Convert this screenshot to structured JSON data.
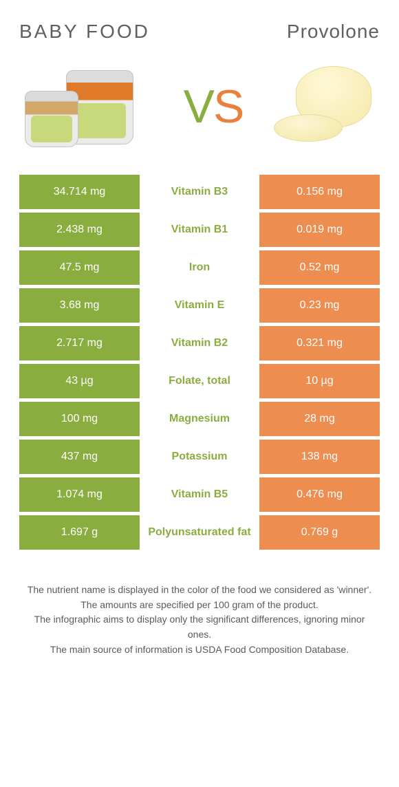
{
  "header": {
    "left_title": "Baby food",
    "right_title": "Provolone"
  },
  "vs": {
    "v": "V",
    "s": "S"
  },
  "colors": {
    "left_bg": "#8aad3f",
    "right_bg": "#ed8d4f",
    "left_text": "#8aad3f",
    "right_text": "#ed8d4f",
    "cell_text": "#ffffff",
    "body_text": "#595959"
  },
  "table": {
    "rows": [
      {
        "left": "34.714 mg",
        "label": "Vitamin B3",
        "right": "0.156 mg",
        "winner": "left"
      },
      {
        "left": "2.438 mg",
        "label": "Vitamin B1",
        "right": "0.019 mg",
        "winner": "left"
      },
      {
        "left": "47.5 mg",
        "label": "Iron",
        "right": "0.52 mg",
        "winner": "left"
      },
      {
        "left": "3.68 mg",
        "label": "Vitamin E",
        "right": "0.23 mg",
        "winner": "left"
      },
      {
        "left": "2.717 mg",
        "label": "Vitamin B2",
        "right": "0.321 mg",
        "winner": "left"
      },
      {
        "left": "43 µg",
        "label": "Folate, total",
        "right": "10 µg",
        "winner": "left"
      },
      {
        "left": "100 mg",
        "label": "Magnesium",
        "right": "28 mg",
        "winner": "left"
      },
      {
        "left": "437 mg",
        "label": "Potassium",
        "right": "138 mg",
        "winner": "left"
      },
      {
        "left": "1.074 mg",
        "label": "Vitamin B5",
        "right": "0.476 mg",
        "winner": "left"
      },
      {
        "left": "1.697 g",
        "label": "Polyunsaturated fat",
        "right": "0.769 g",
        "winner": "left"
      }
    ]
  },
  "footnotes": [
    "The nutrient name is displayed in the color of the food we considered as 'winner'.",
    "The amounts are specified per 100 gram of the product.",
    "The infographic aims to display only the significant differences, ignoring minor ones.",
    "The main source of information is USDA Food Composition Database."
  ]
}
